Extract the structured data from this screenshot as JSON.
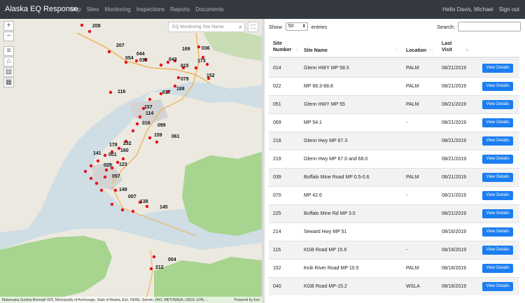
{
  "navbar": {
    "brand": "Alaska EQ Response",
    "links": [
      "Map",
      "Sites",
      "Monitoring",
      "Inspections",
      "Reports",
      "Documents"
    ],
    "greeting": "Hello Davis, Michael",
    "signout": "Sign out"
  },
  "map": {
    "search_placeholder": "EQ Monitoring Site Name",
    "attribution": "Matanuska Susitna Borough GIS, Municipality of Anchorage, State of Alaska, Esri, HERE, Garmin, FAO, METI/NASA, USGS, EPA, ...",
    "powered_by": "Powered by Esri",
    "labels": [
      "208",
      "207",
      "054",
      "044",
      "038",
      "043",
      "015",
      "173",
      "169",
      "036",
      "152",
      "079",
      "188",
      "017",
      "116",
      "157",
      "114",
      "016",
      "099",
      "159",
      "061",
      "178",
      "232",
      "141",
      "001",
      "160",
      "029",
      "123",
      "057",
      "149",
      "007",
      "138",
      "145",
      "004",
      "212"
    ],
    "colors": {
      "water": "#cfdde4",
      "land": "#ece9e1",
      "forest": "#a7d58f",
      "marker": "#e8101a"
    }
  },
  "table": {
    "show_label": "Show",
    "entries_value": "50",
    "entries_label": "entries",
    "search_label": "Search:",
    "columns": {
      "site_number_l1": "Site",
      "site_number_l2": "Number",
      "site_name": "Site Name",
      "location": "Location",
      "last_visit_l1": "Last",
      "last_visit_l2": "Visit"
    },
    "button_label": "View Details",
    "rows": [
      {
        "number": "014",
        "name": "Glenn HWY MP 58.5",
        "location": "PALM",
        "visit": "08/21/2019"
      },
      {
        "number": "022",
        "name": "MP 68.3-68.8",
        "location": "PALM",
        "visit": "08/21/2019"
      },
      {
        "number": "051",
        "name": "Glenn HWY MP 55",
        "location": "PALM",
        "visit": "08/21/2019"
      },
      {
        "number": "069",
        "name": "MP 54.1",
        "location": "-",
        "visit": "08/21/2019"
      },
      {
        "number": "218",
        "name": "Glenn Hwy MP 67.3",
        "location": "",
        "visit": "08/21/2019"
      },
      {
        "number": "219",
        "name": "Glenn Hwy MP 67.0 and 68.0",
        "location": "",
        "visit": "08/21/2019"
      },
      {
        "number": "039",
        "name": "Buffalo Mine Road MP 0.5-0.6",
        "location": "PALM",
        "visit": "08/21/2019"
      },
      {
        "number": "070",
        "name": "MP 42.6",
        "location": "-",
        "visit": "08/21/2019"
      },
      {
        "number": "225",
        "name": "Buffalo Mine Rd MP 3.0",
        "location": "",
        "visit": "08/21/2019"
      },
      {
        "number": "214",
        "name": "Seward Hwy MP 51",
        "location": "",
        "visit": "08/16/2019"
      },
      {
        "number": "116",
        "name": "KGB Road MP 15.6",
        "location": "-",
        "visit": "08/16/2019"
      },
      {
        "number": "152",
        "name": "Knik River Road MP 10.5",
        "location": "PALM",
        "visit": "08/16/2019"
      },
      {
        "number": "040",
        "name": "KGB Road MP-15.2",
        "location": "WSLA",
        "visit": "08/16/2019"
      }
    ]
  }
}
